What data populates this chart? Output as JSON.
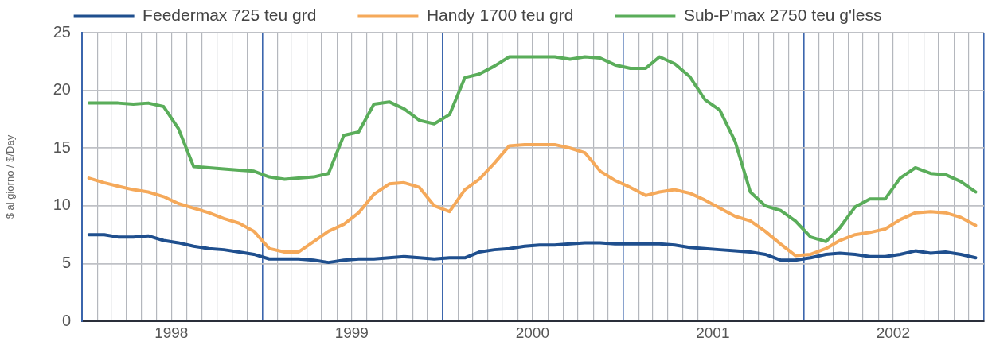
{
  "chart_data": {
    "type": "line",
    "ylabel": "$ al giorno / $/Day",
    "legend": "top",
    "grid": true,
    "x": [
      "1998-01-15",
      "1998-02-15",
      "1998-03-15",
      "1998-04-15",
      "1998-05-15",
      "1998-06-15",
      "1998-07-15",
      "1998-08-15",
      "1998-09-15",
      "1998-10-15",
      "1998-11-15",
      "1998-12-15",
      "1999-01-15",
      "1999-02-15",
      "1999-03-15",
      "1999-04-15",
      "1999-05-15",
      "1999-06-15",
      "1999-07-15",
      "1999-08-15",
      "1999-09-15",
      "1999-10-15",
      "1999-11-15",
      "1999-12-15",
      "2000-01-15",
      "2000-02-15",
      "2000-03-15",
      "2000-04-15",
      "2000-05-15",
      "2000-06-15",
      "2000-07-15",
      "2000-08-15",
      "2000-09-15",
      "2000-10-15",
      "2000-11-15",
      "2000-12-15",
      "2001-01-15",
      "2001-02-15",
      "2001-03-15",
      "2001-04-15",
      "2001-05-15",
      "2001-06-15",
      "2001-07-15",
      "2001-08-15",
      "2001-09-15",
      "2001-10-15",
      "2001-11-15",
      "2001-12-15",
      "2002-01-15",
      "2002-02-15",
      "2002-03-15",
      "2002-04-15",
      "2002-05-15",
      "2002-06-15",
      "2002-07-15",
      "2002-08-15",
      "2002-09-15",
      "2002-10-15",
      "2002-11-15",
      "2002-12-15"
    ],
    "xlim": [
      "1998-01-01",
      "2003-01-01"
    ],
    "xticks": [
      {
        "value": "1998-01-01",
        "label": null
      },
      {
        "value": "1998-02-01",
        "label": null
      },
      {
        "value": "1998-03-01",
        "label": null
      },
      {
        "value": "1998-04-01",
        "label": null
      },
      {
        "value": "1998-05-01",
        "label": null
      },
      {
        "value": "1998-06-01",
        "label": null
      },
      {
        "value": "1998-07-01",
        "label": "1998"
      },
      {
        "value": "1998-08-01",
        "label": null
      },
      {
        "value": "1998-09-01",
        "label": null
      },
      {
        "value": "1998-10-01",
        "label": null
      },
      {
        "value": "1998-11-01",
        "label": null
      },
      {
        "value": "1998-12-01",
        "label": null
      },
      {
        "value": "1999-01-01",
        "label": null
      },
      {
        "value": "1999-02-01",
        "label": null
      },
      {
        "value": "1999-03-01",
        "label": null
      },
      {
        "value": "1999-04-01",
        "label": null
      },
      {
        "value": "1999-05-01",
        "label": null
      },
      {
        "value": "1999-06-01",
        "label": null
      },
      {
        "value": "1999-07-01",
        "label": "1999"
      },
      {
        "value": "1999-08-01",
        "label": null
      },
      {
        "value": "1999-09-01",
        "label": null
      },
      {
        "value": "1999-10-01",
        "label": null
      },
      {
        "value": "1999-11-01",
        "label": null
      },
      {
        "value": "1999-12-01",
        "label": null
      },
      {
        "value": "2000-01-01",
        "label": null
      },
      {
        "value": "2000-02-01",
        "label": null
      },
      {
        "value": "2000-03-01",
        "label": null
      },
      {
        "value": "2000-04-01",
        "label": null
      },
      {
        "value": "2000-05-01",
        "label": null
      },
      {
        "value": "2000-06-01",
        "label": null
      },
      {
        "value": "2000-07-01",
        "label": "2000"
      },
      {
        "value": "2000-08-01",
        "label": null
      },
      {
        "value": "2000-09-01",
        "label": null
      },
      {
        "value": "2000-10-01",
        "label": null
      },
      {
        "value": "2000-11-01",
        "label": null
      },
      {
        "value": "2000-12-01",
        "label": null
      },
      {
        "value": "2001-01-01",
        "label": null
      },
      {
        "value": "2001-02-01",
        "label": null
      },
      {
        "value": "2001-03-01",
        "label": null
      },
      {
        "value": "2001-04-01",
        "label": null
      },
      {
        "value": "2001-05-01",
        "label": null
      },
      {
        "value": "2001-06-01",
        "label": null
      },
      {
        "value": "2001-07-01",
        "label": "2001"
      },
      {
        "value": "2001-08-01",
        "label": null
      },
      {
        "value": "2001-09-01",
        "label": null
      },
      {
        "value": "2001-10-01",
        "label": null
      },
      {
        "value": "2001-11-01",
        "label": null
      },
      {
        "value": "2001-12-01",
        "label": null
      },
      {
        "value": "2002-01-01",
        "label": null
      },
      {
        "value": "2002-02-01",
        "label": null
      },
      {
        "value": "2002-03-01",
        "label": null
      },
      {
        "value": "2002-04-01",
        "label": null
      },
      {
        "value": "2002-05-01",
        "label": null
      },
      {
        "value": "2002-06-01",
        "label": null
      },
      {
        "value": "2002-07-01",
        "label": "2002"
      },
      {
        "value": "2002-08-01",
        "label": null
      },
      {
        "value": "2002-09-01",
        "label": null
      },
      {
        "value": "2002-10-01",
        "label": null
      },
      {
        "value": "2002-11-01",
        "label": null
      },
      {
        "value": "2002-12-01",
        "label": null
      },
      {
        "value": "2003-01-01",
        "label": null
      }
    ],
    "ylim": [
      0,
      25
    ],
    "yticks": [
      0,
      5,
      10,
      15,
      20,
      25
    ],
    "series": [
      {
        "name": "Feedermax 725 teu grd",
        "color": "#1f4f8e",
        "values": [
          7.5,
          7.5,
          7.3,
          7.3,
          7.4,
          7.0,
          6.8,
          6.5,
          6.3,
          6.2,
          6.0,
          5.8,
          5.4,
          5.4,
          5.4,
          5.3,
          5.1,
          5.3,
          5.4,
          5.4,
          5.5,
          5.6,
          5.5,
          5.4,
          5.5,
          5.5,
          6.0,
          6.2,
          6.3,
          6.5,
          6.6,
          6.6,
          6.7,
          6.8,
          6.8,
          6.7,
          6.7,
          6.7,
          6.7,
          6.6,
          6.4,
          6.3,
          6.2,
          6.1,
          6.0,
          5.8,
          5.3,
          5.3,
          5.5,
          5.8,
          5.9,
          5.8,
          5.6,
          5.6,
          5.8,
          6.1,
          5.9,
          6.0,
          5.8,
          5.5
        ]
      },
      {
        "name": "Handy 1700 teu grd",
        "color": "#f5a95a",
        "values": [
          12.4,
          12.0,
          11.7,
          11.4,
          11.2,
          10.8,
          10.2,
          9.8,
          9.4,
          8.9,
          8.5,
          7.8,
          6.3,
          6.0,
          6.0,
          6.9,
          7.8,
          8.4,
          9.4,
          11.0,
          11.9,
          12.0,
          11.6,
          10.0,
          9.5,
          11.4,
          12.3,
          13.7,
          15.2,
          15.3,
          15.3,
          15.3,
          15.0,
          14.6,
          13.0,
          12.2,
          11.6,
          10.9,
          11.2,
          11.4,
          11.1,
          10.5,
          9.8,
          9.1,
          8.7,
          7.8,
          6.7,
          5.7,
          5.8,
          6.3,
          7.0,
          7.5,
          7.7,
          8.0,
          8.8,
          9.4,
          9.5,
          9.4,
          9.0,
          8.3
        ]
      },
      {
        "name": "Sub-P'max 2750 teu g'less",
        "color": "#5aad5a",
        "values": [
          18.9,
          18.9,
          18.9,
          18.8,
          18.9,
          18.6,
          16.7,
          13.4,
          13.3,
          13.2,
          13.1,
          13.0,
          12.5,
          12.3,
          12.4,
          12.5,
          12.8,
          16.1,
          16.4,
          18.8,
          19.0,
          18.4,
          17.4,
          17.1,
          17.9,
          21.1,
          21.4,
          22.1,
          22.9,
          22.9,
          22.9,
          22.9,
          22.7,
          22.9,
          22.8,
          22.2,
          21.9,
          21.9,
          22.9,
          22.3,
          21.2,
          19.2,
          18.3,
          15.6,
          11.2,
          10.0,
          9.6,
          8.7,
          7.3,
          6.9,
          8.1,
          9.9,
          10.6,
          10.6,
          12.4,
          13.3,
          12.8,
          12.7,
          12.1,
          11.2
        ]
      }
    ]
  }
}
